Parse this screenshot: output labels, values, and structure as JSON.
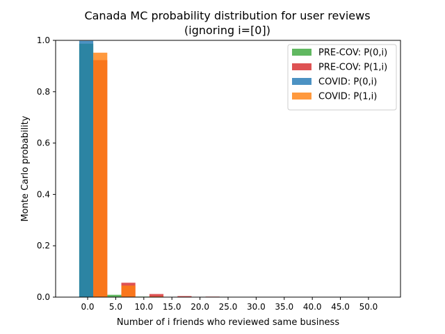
{
  "chart_data": {
    "type": "bar",
    "title_line1": "Canada MC probability distribution for user reviews",
    "title_line2": "(ignoring i=[0])",
    "xlabel": "Number of i friends who reviewed same business",
    "ylabel": "Monte Carlo probability",
    "xlim": [
      -5.7,
      55.7
    ],
    "ylim": [
      0,
      1.0
    ],
    "xticks": [
      0,
      5,
      10,
      15,
      20,
      25,
      30,
      35,
      40,
      45,
      50
    ],
    "xtick_labels": [
      "0.0",
      "5.0",
      "10.0",
      "15.0",
      "20.0",
      "25.0",
      "30.0",
      "35.0",
      "40.0",
      "45.0",
      "50.0"
    ],
    "yticks": [
      0,
      0.2,
      0.4,
      0.6,
      0.8,
      1.0
    ],
    "ytick_labels": [
      "0.0",
      "0.2",
      "0.4",
      "0.6",
      "0.8",
      "1.0"
    ],
    "grid": false,
    "legend_position": "top-right",
    "series": [
      {
        "name": "PRE-COV: P(0,i)",
        "color": "#2ca02c",
        "opacity": 0.75,
        "offset": -1.25,
        "x": [
          1,
          6,
          11,
          16,
          21
        ],
        "values": [
          0.987,
          0.009,
          0.002,
          0.001,
          0.0005
        ]
      },
      {
        "name": "PRE-COV: P(1,i)",
        "color": "#d62728",
        "opacity": 0.8,
        "offset": 1.25,
        "x": [
          1,
          6,
          11,
          16,
          21
        ],
        "values": [
          0.923,
          0.056,
          0.012,
          0.004,
          0.002
        ]
      },
      {
        "name": "COVID: P(0,i)",
        "color": "#1f77b4",
        "opacity": 0.8,
        "offset": -1.25,
        "x": [
          1,
          6,
          11,
          16,
          21
        ],
        "values": [
          0.998,
          0.001,
          0.0005,
          0.0,
          0.0
        ]
      },
      {
        "name": "COVID: P(1,i)",
        "color": "#ff7f0e",
        "opacity": 0.8,
        "offset": 1.25,
        "x": [
          1,
          6,
          11,
          16,
          21
        ],
        "values": [
          0.952,
          0.045,
          0.0025,
          0.0005,
          0.0
        ]
      }
    ]
  }
}
